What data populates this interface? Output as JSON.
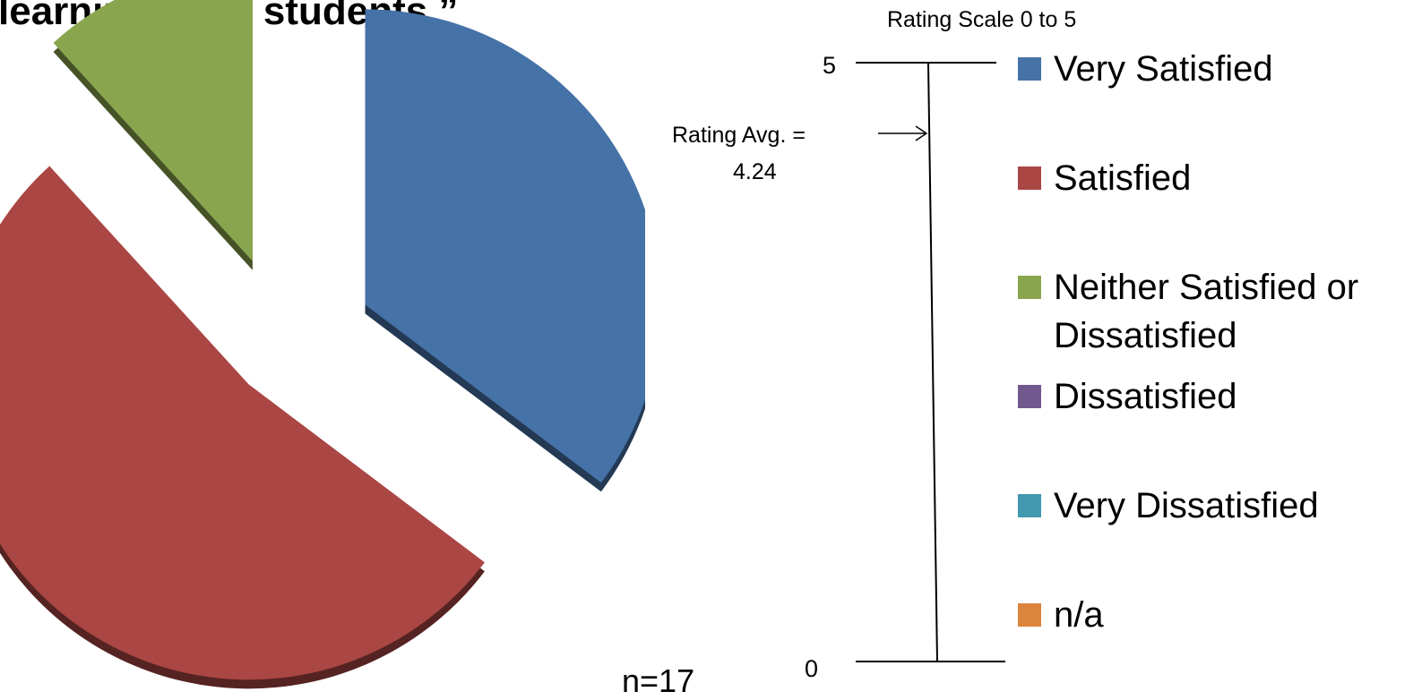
{
  "title": "learning in all students.”",
  "chart_data": {
    "type": "pie",
    "categories": [
      "Very Satisfied",
      "Satisfied",
      "Neither Satisfied or Dissatisfied",
      "Dissatisfied",
      "Very Dissatisfied",
      "n/a"
    ],
    "values": [
      6,
      9,
      2,
      0,
      0,
      0
    ],
    "colors": [
      "#4572A7",
      "#AA4643",
      "#89A54E",
      "#71588F",
      "#4198AF",
      "#DB843D"
    ],
    "legend_position": "right",
    "annotation": "n=17"
  },
  "rating_scale": {
    "title": "Rating Scale 0 to 5",
    "min": 0,
    "max": 5,
    "min_label": "0",
    "max_label": "5",
    "average": 4.24,
    "average_label": "Rating Avg. =",
    "average_value_label": "4.24"
  }
}
